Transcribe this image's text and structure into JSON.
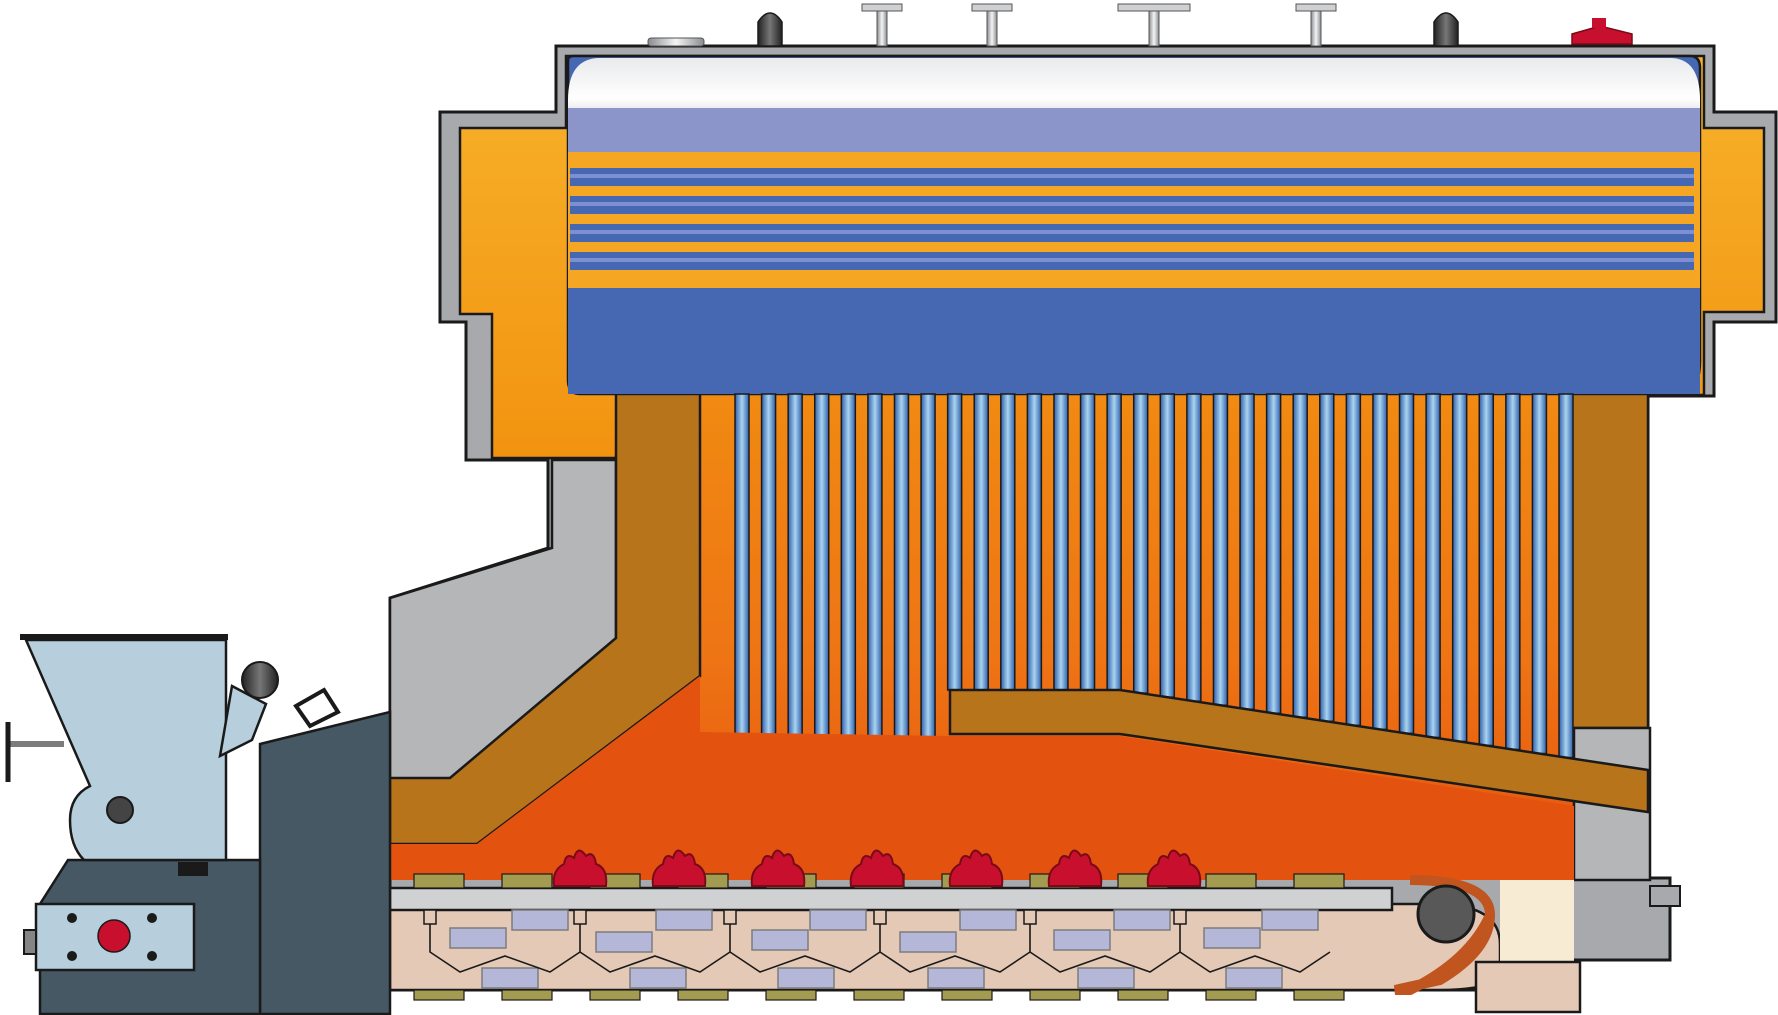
{
  "diagram": {
    "labels": [],
    "colors": {
      "outline": "#1a1a1a",
      "casing_gray": "#a7a9ac",
      "insulation_gray": "#b5b6b8",
      "refractory_brown": "#b8741a",
      "gas_orange_top": "#f7b22b",
      "gas_orange_mid": "#f18a12",
      "flame_red_orange": "#e4520f",
      "drum_blue": "#4667b2",
      "drum_light_blue": "#8b95c9",
      "tube_blue": "#2f66b3",
      "tube_light": "#a9d4ef",
      "hopper_blue": "#b7cfdc",
      "frame_slate": "#465864",
      "grate_pink": "#e4c9b7",
      "fire_red": "#c8102e",
      "plate_olive": "#a39b4f",
      "air_box_lavender": "#b5b7d9",
      "ash_cream": "#f7ecd3"
    },
    "components": {
      "upper_drum": {
        "tube_bands": 4
      },
      "convection_tube_bank": {
        "tube_count": 32
      },
      "chain_grate": {
        "fires": 7
      }
    }
  }
}
